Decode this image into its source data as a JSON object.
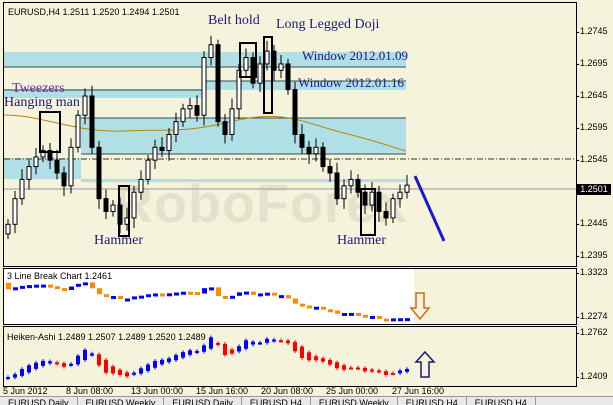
{
  "main": {
    "title": "EURUSD,H4  1.2511 1.2520 1.2494 1.2501",
    "current_price": "1.2501",
    "watermark": "RoboForex",
    "price_axis": [
      "1.2745",
      "1.2695",
      "1.2645",
      "1.2595",
      "1.2545",
      "1.2445",
      "1.2395"
    ],
    "annotations": {
      "belt_hold": "Belt hold",
      "long_legged_doji": "Long Legged Doji",
      "tweezers": "Tweezers",
      "hanging_man": "Hanging man",
      "hammer1": "Hammer",
      "hammer2": "Hammer",
      "window1": "Window 2012.01.09",
      "window2": "Window 2012.01.16"
    },
    "trend_arrow_color": "#1a1acc"
  },
  "chart_data": {
    "type": "candlestick",
    "symbol": "EURUSD",
    "timeframe": "H4",
    "ylim": [
      1.2375,
      1.2785
    ],
    "closes": [
      1.244,
      1.248,
      1.251,
      1.253,
      1.2545,
      1.2555,
      1.254,
      1.252,
      1.25,
      1.256,
      1.261,
      1.264,
      1.256,
      1.248,
      1.246,
      1.247,
      1.244,
      1.245,
      1.249,
      1.251,
      1.254,
      1.256,
      1.2555,
      1.258,
      1.26,
      1.262,
      1.2625,
      1.261,
      1.27,
      1.272,
      1.26,
      1.258,
      1.262,
      1.268,
      1.27,
      1.266,
      1.269,
      1.271,
      1.268,
      1.269,
      1.265,
      1.258,
      1.256,
      1.255,
      1.256,
      1.253,
      1.252,
      1.248,
      1.25,
      1.251,
      1.249,
      1.247,
      1.249,
      1.246,
      1.245,
      1.248,
      1.249,
      1.2501
    ],
    "x_ticks": [
      "5 Jun 2012",
      "8 Jun 08:00",
      "13 Jun 00:00",
      "15 Jun 16:00",
      "20 Jun 08:00",
      "25 Jun 00:00",
      "27 Jun 16:00"
    ]
  },
  "line_break": {
    "title": "3 Line Break Chart 1.2461",
    "axis": [
      "1.3323",
      "1.2274"
    ],
    "signal": "down-arrow",
    "up_color": "#0000ff",
    "down_color": "#ff8c00"
  },
  "heiken_ashi": {
    "title": "Heiken-Ashi 1.2489 1.2507 1.2489 1.2520 1.2489",
    "axis": [
      "1.2762",
      "1.2409"
    ],
    "signal": "up-arrow",
    "up_color": "#0000ff",
    "down_color": "#ff0000"
  },
  "tabs": [
    "EURUSD,Daily",
    "EURUSD,Weekly",
    "EURUSD,Daily",
    "EURUSD,H4",
    "EURUSD,Weekly",
    "EURUSD,H4",
    "EURUSD,H4"
  ]
}
